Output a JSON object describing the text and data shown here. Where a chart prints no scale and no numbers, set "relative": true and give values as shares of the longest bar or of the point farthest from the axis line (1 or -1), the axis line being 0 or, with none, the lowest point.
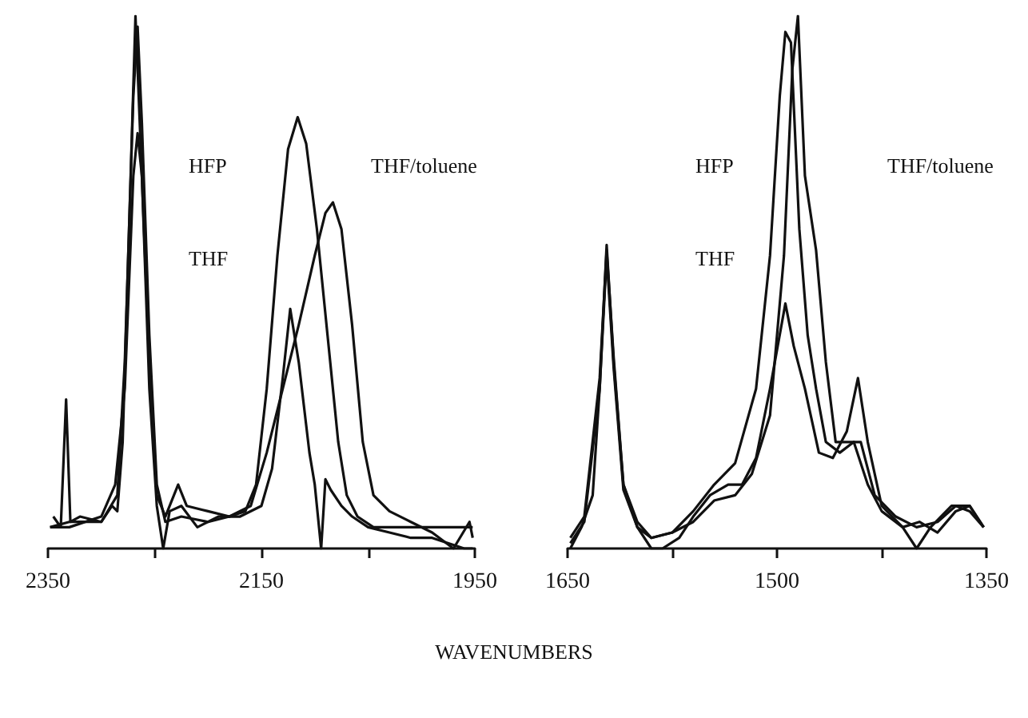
{
  "chart_data": [
    {
      "type": "line",
      "relative": true,
      "xlabel": "WAVENUMBERS",
      "tick_labels": "x",
      "grid": false,
      "annotations": [
        "HFP",
        "THF",
        "THF/toluene"
      ],
      "xlim": [
        2350,
        1950
      ],
      "xticks": [
        2350,
        {
          "value": 2250,
          "label": null
        },
        2150,
        {
          "value": 2050,
          "label": null
        },
        1950
      ],
      "series": [
        {
          "color": "#111111",
          "x": [
            2345,
            2338,
            2333,
            2329,
            2320,
            2300,
            2290,
            2285,
            2280,
            2274,
            2268,
            2262,
            2255,
            2248,
            2242,
            2236,
            2225,
            2210,
            2190,
            2170,
            2150,
            2140,
            2130,
            2123,
            2115,
            2105,
            2100,
            2094,
            2090,
            2085,
            2075,
            2065,
            2050,
            2030,
            2010,
            1990,
            1960,
            1952
          ],
          "values": [
            0.06,
            0.04,
            0.28,
            0.05,
            0.06,
            0.05,
            0.08,
            0.07,
            0.2,
            0.6,
            1.0,
            0.7,
            0.3,
            0.08,
            0.0,
            0.07,
            0.08,
            0.04,
            0.06,
            0.06,
            0.08,
            0.15,
            0.32,
            0.45,
            0.35,
            0.18,
            0.12,
            0.0,
            0.13,
            0.11,
            0.08,
            0.06,
            0.04,
            0.03,
            0.02,
            0.02,
            0.0,
            0.0
          ]
        },
        {
          "color": "#111111",
          "x": [
            2348,
            2330,
            2300,
            2285,
            2278,
            2270,
            2266,
            2262,
            2255,
            2248,
            2240,
            2225,
            2200,
            2180,
            2165,
            2155,
            2145,
            2135,
            2125,
            2116,
            2108,
            2098,
            2088,
            2078,
            2070,
            2060,
            2045,
            2020,
            1990,
            1952
          ],
          "values": [
            0.04,
            0.05,
            0.05,
            0.1,
            0.35,
            0.85,
            0.98,
            0.8,
            0.4,
            0.12,
            0.05,
            0.06,
            0.05,
            0.06,
            0.07,
            0.12,
            0.3,
            0.55,
            0.75,
            0.81,
            0.76,
            0.6,
            0.4,
            0.2,
            0.1,
            0.06,
            0.04,
            0.04,
            0.04,
            0.04
          ]
        },
        {
          "color": "#111111",
          "x": [
            2348,
            2330,
            2300,
            2287,
            2278,
            2270,
            2266,
            2262,
            2255,
            2248,
            2240,
            2228,
            2220,
            2200,
            2180,
            2160,
            2145,
            2130,
            2115,
            2100,
            2090,
            2083,
            2075,
            2065,
            2055,
            2045,
            2030,
            2010,
            1990,
            1970,
            1955,
            1952
          ],
          "values": [
            0.04,
            0.04,
            0.06,
            0.12,
            0.3,
            0.7,
            0.78,
            0.7,
            0.35,
            0.1,
            0.06,
            0.12,
            0.08,
            0.07,
            0.06,
            0.08,
            0.18,
            0.3,
            0.42,
            0.55,
            0.63,
            0.65,
            0.6,
            0.42,
            0.2,
            0.1,
            0.07,
            0.05,
            0.03,
            0.0,
            0.05,
            0.02
          ]
        }
      ]
    },
    {
      "type": "line",
      "relative": true,
      "tick_labels": "x",
      "grid": false,
      "annotations": [
        "HFP",
        "THF",
        "THF/toluene"
      ],
      "xlim": [
        1650,
        1350
      ],
      "xticks": [
        1650,
        {
          "value": 1575,
          "label": null
        },
        1500,
        {
          "value": 1425,
          "label": null
        },
        1350
      ],
      "series": [
        {
          "color": "#111111",
          "x": [
            1648,
            1640,
            1632,
            1627,
            1622,
            1617,
            1610,
            1600,
            1590,
            1582,
            1570,
            1560,
            1548,
            1535,
            1525,
            1515,
            1505,
            1494,
            1488,
            1480,
            1470,
            1460,
            1450,
            1442,
            1435,
            1425,
            1410,
            1400,
            1390,
            1375,
            1362,
            1352
          ],
          "values": [
            0.0,
            0.04,
            0.1,
            0.3,
            0.57,
            0.35,
            0.12,
            0.04,
            0.0,
            0.0,
            0.02,
            0.06,
            0.1,
            0.12,
            0.12,
            0.17,
            0.3,
            0.46,
            0.38,
            0.3,
            0.18,
            0.17,
            0.22,
            0.32,
            0.2,
            0.08,
            0.04,
            0.0,
            0.04,
            0.08,
            0.08,
            0.04
          ]
        },
        {
          "color": "#111111",
          "x": [
            1648,
            1638,
            1627,
            1622,
            1617,
            1610,
            1600,
            1590,
            1575,
            1560,
            1545,
            1530,
            1515,
            1505,
            1498,
            1494,
            1490,
            1484,
            1478,
            1472,
            1465,
            1455,
            1445,
            1435,
            1425,
            1410,
            1398,
            1385,
            1372,
            1362,
            1352
          ],
          "values": [
            0.02,
            0.06,
            0.32,
            0.56,
            0.36,
            0.12,
            0.05,
            0.02,
            0.03,
            0.07,
            0.12,
            0.16,
            0.3,
            0.55,
            0.85,
            0.97,
            0.95,
            0.6,
            0.4,
            0.3,
            0.2,
            0.18,
            0.2,
            0.12,
            0.07,
            0.04,
            0.05,
            0.03,
            0.07,
            0.08,
            0.04
          ]
        },
        {
          "color": "#111111",
          "x": [
            1648,
            1638,
            1627,
            1622,
            1617,
            1610,
            1600,
            1590,
            1575,
            1560,
            1545,
            1530,
            1518,
            1505,
            1495,
            1489,
            1485,
            1480,
            1472,
            1465,
            1458,
            1450,
            1440,
            1430,
            1415,
            1400,
            1385,
            1372,
            1362,
            1352
          ],
          "values": [
            0.01,
            0.05,
            0.3,
            0.55,
            0.34,
            0.11,
            0.04,
            0.02,
            0.03,
            0.05,
            0.09,
            0.1,
            0.14,
            0.25,
            0.55,
            0.9,
            1.0,
            0.7,
            0.56,
            0.35,
            0.2,
            0.2,
            0.2,
            0.1,
            0.06,
            0.04,
            0.05,
            0.08,
            0.07,
            0.04
          ]
        }
      ]
    }
  ]
}
